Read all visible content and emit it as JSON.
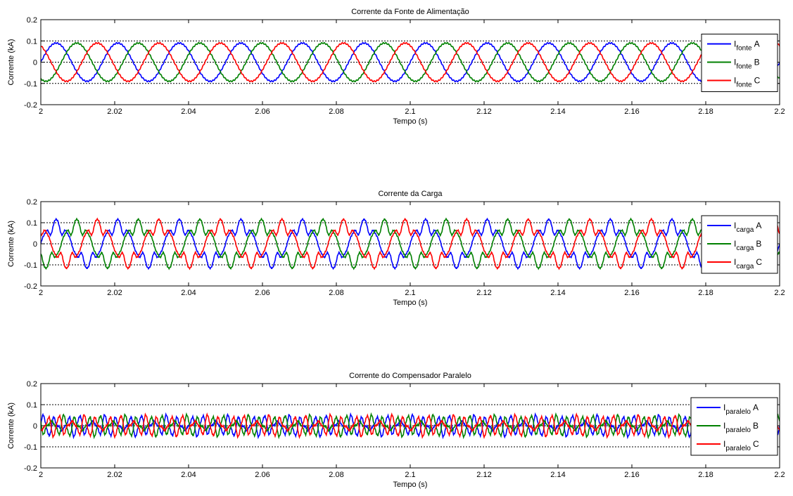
{
  "chart_data": [
    {
      "type": "line",
      "title": "Corrente da Fonte de Alimentação",
      "xlabel": "Tempo (s)",
      "ylabel": "Corrente (kA)",
      "xlim": [
        2,
        2.2
      ],
      "ylim": [
        -0.2,
        0.2
      ],
      "x_ticks": [
        "2",
        "2.02",
        "2.04",
        "2.06",
        "2.08",
        "2.1",
        "2.12",
        "2.14",
        "2.16",
        "2.18",
        "2.2"
      ],
      "y_ticks": [
        "-0.2",
        "-0.1",
        "0",
        "0.1",
        "0.2"
      ],
      "reference_lines": [
        0.1,
        0,
        -0.1
      ],
      "grid": false,
      "legend_position": "right",
      "waveform": "sinusoidal",
      "frequency_hz": 60,
      "amplitude_kA": 0.09,
      "series": [
        {
          "name_main": "I",
          "name_sub": "fonte",
          "name_suffix": "A",
          "color": "#0000ff",
          "phase_deg": 0
        },
        {
          "name_main": "I",
          "name_sub": "fonte",
          "name_suffix": "B",
          "color": "#008000",
          "phase_deg": -120
        },
        {
          "name_main": "I",
          "name_sub": "fonte",
          "name_suffix": "C",
          "color": "#ff0000",
          "phase_deg": 120
        }
      ]
    },
    {
      "type": "line",
      "title": "Corrente da Carga",
      "xlabel": "Tempo (s)",
      "ylabel": "Corrente (kA)",
      "xlim": [
        2,
        2.2
      ],
      "ylim": [
        -0.2,
        0.2
      ],
      "x_ticks": [
        "2",
        "2.02",
        "2.04",
        "2.06",
        "2.08",
        "2.1",
        "2.12",
        "2.14",
        "2.16",
        "2.18",
        "2.2"
      ],
      "y_ticks": [
        "-0.2",
        "-0.1",
        "0",
        "0.1",
        "0.2"
      ],
      "reference_lines": [
        0.1,
        0,
        -0.1
      ],
      "grid": false,
      "legend_position": "right",
      "waveform": "distorted",
      "frequency_hz": 60,
      "amplitude_kA": 0.12,
      "series": [
        {
          "name_main": "I",
          "name_sub": "carga",
          "name_suffix": "A",
          "color": "#0000ff",
          "phase_deg": 0
        },
        {
          "name_main": "I",
          "name_sub": "carga",
          "name_suffix": "B",
          "color": "#008000",
          "phase_deg": -120
        },
        {
          "name_main": "I",
          "name_sub": "carga",
          "name_suffix": "C",
          "color": "#ff0000",
          "phase_deg": 120
        }
      ]
    },
    {
      "type": "line",
      "title": "Corrente do Compensador Paralelo",
      "xlabel": "Tempo (s)",
      "ylabel": "Corrente (kA)",
      "xlim": [
        2,
        2.2
      ],
      "ylim": [
        -0.2,
        0.2
      ],
      "x_ticks": [
        "2",
        "2.02",
        "2.04",
        "2.06",
        "2.08",
        "2.1",
        "2.12",
        "2.14",
        "2.16",
        "2.18",
        "2.2"
      ],
      "y_ticks": [
        "-0.2",
        "-0.1",
        "0",
        "0.1",
        "0.2"
      ],
      "reference_lines": [
        0.1,
        0,
        -0.1
      ],
      "grid": false,
      "legend_position": "right",
      "waveform": "harmonic",
      "frequency_hz": 60,
      "amplitude_kA": 0.05,
      "series": [
        {
          "name_main": "I",
          "name_sub": "paralelo",
          "name_suffix": "A",
          "color": "#0000ff",
          "phase_deg": 0
        },
        {
          "name_main": "I",
          "name_sub": "paralelo",
          "name_suffix": "B",
          "color": "#008000",
          "phase_deg": -120
        },
        {
          "name_main": "I",
          "name_sub": "paralelo",
          "name_suffix": "C",
          "color": "#ff0000",
          "phase_deg": 120
        }
      ]
    }
  ]
}
